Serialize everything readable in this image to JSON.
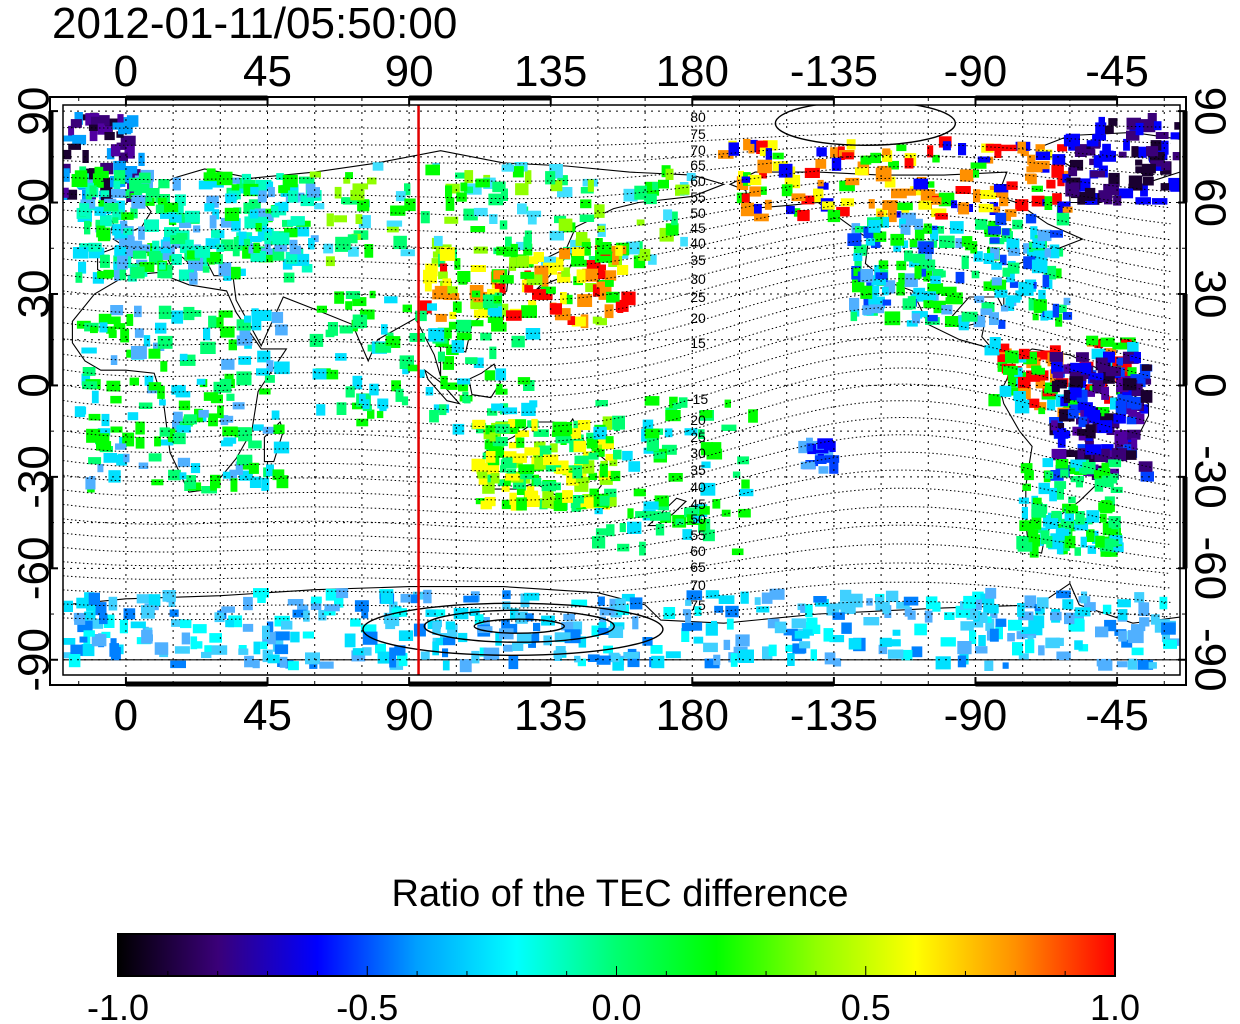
{
  "timestamp": "2012-01-11/05:50:00",
  "map": {
    "lon_ticks_bottom": [
      "0",
      "45",
      "90",
      "135",
      "180",
      "-135",
      "-90",
      "-45"
    ],
    "lon_ticks_top": [
      "0",
      "45",
      "90",
      "135",
      "180",
      "-135",
      "-90",
      "-45"
    ],
    "lat_ticks_left": [
      "90",
      "60",
      "30",
      "0",
      "-30",
      "-60",
      "-90"
    ],
    "lat_ticks_right": [
      "90",
      "60",
      "30",
      "0",
      "-30",
      "-60",
      "-90"
    ],
    "lon_range": [
      -20,
      335
    ],
    "lat_range": [
      -95,
      92
    ],
    "terminator_lon": 93,
    "terminator_color": "#e00000",
    "contour_labels_north": [
      "80",
      "75",
      "70",
      "65",
      "60",
      "55",
      "50",
      "45",
      "40",
      "35",
      "30",
      "25",
      "20",
      "15"
    ],
    "contour_labels_south": [
      "-15",
      "20",
      "25",
      "30",
      "35",
      "40",
      "45",
      "50",
      "55",
      "60",
      "65",
      "70",
      "75"
    ]
  },
  "colorbar": {
    "title": "Ratio of the TEC difference",
    "ticks": [
      "-1.0",
      "-0.5",
      "0.0",
      "0.5",
      "1.0"
    ],
    "range": [
      -1.0,
      1.0
    ],
    "colors": [
      "#000000",
      "#3a0078",
      "#0000ff",
      "#00a0ff",
      "#00ffff",
      "#00ff70",
      "#00ff00",
      "#90ff00",
      "#ffff00",
      "#ff9000",
      "#ff0000"
    ]
  }
}
